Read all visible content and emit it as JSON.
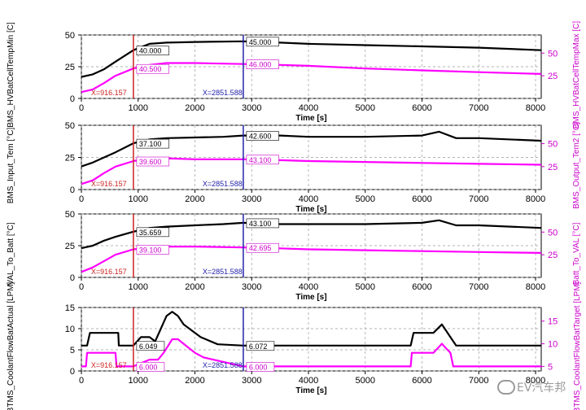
{
  "chart_data": [
    {
      "type": "line",
      "ylabel_left": "BMS_HVBatCellTempMin [C]",
      "ylabel_right": "BMS_HVBatCellTempMax [C]",
      "xlabel": "Time [s]",
      "xlim": [
        0,
        8100
      ],
      "xticks": [
        0,
        1000,
        2000,
        3000,
        4000,
        5000,
        6000,
        7000,
        8000
      ],
      "ylim_left": [
        0,
        50
      ],
      "yticks_left": [
        0,
        25,
        50
      ],
      "ylim_right": [
        0,
        70
      ],
      "yticks_right": [
        25,
        50
      ],
      "grid": true,
      "series": [
        {
          "axis": "left",
          "color": "#000000",
          "x": [
            0,
            200,
            400,
            600,
            916,
            1200,
            1500,
            2000,
            2851,
            3500,
            4000,
            5000,
            6000,
            7000,
            8100
          ],
          "y": [
            17,
            19,
            23,
            29,
            38,
            43,
            44,
            44.5,
            45,
            44,
            43,
            42,
            41,
            40,
            38
          ]
        },
        {
          "axis": "right",
          "color": "#ff00ff",
          "x": [
            0,
            200,
            400,
            600,
            916,
            1200,
            1500,
            2000,
            2851,
            3500,
            4000,
            5000,
            6000,
            7000,
            8100
          ],
          "y": [
            7,
            10,
            17,
            25,
            33,
            37,
            39,
            39,
            38,
            37,
            36,
            33,
            31,
            29,
            27
          ]
        }
      ],
      "cursors": [
        {
          "x": 916.157,
          "label": "X=916.157",
          "color": "#cc2222",
          "left_value": "40.000",
          "right_value": "40.500"
        },
        {
          "x": 2851.588,
          "label": "X=2851.588",
          "color": "#2222aa",
          "left_value": "45.000",
          "right_value": "46.000"
        }
      ]
    },
    {
      "type": "line",
      "ylabel_left": "BMS_Input_Tem [°C]",
      "ylabel_right": "BMS_Output_Tem2 [°C]",
      "xlabel": "Time [s]",
      "xlim": [
        0,
        8100
      ],
      "xticks": [
        0,
        1000,
        2000,
        3000,
        4000,
        5000,
        6000,
        7000,
        8000
      ],
      "ylim_left": [
        0,
        50
      ],
      "yticks_left": [
        0,
        25,
        50
      ],
      "ylim_right": [
        0,
        70
      ],
      "yticks_right": [
        25,
        50
      ],
      "grid": true,
      "series": [
        {
          "axis": "left",
          "color": "#000000",
          "x": [
            0,
            200,
            400,
            600,
            916,
            1200,
            1500,
            2000,
            2500,
            2851,
            3500,
            4000,
            5000,
            6000,
            6300,
            6600,
            7000,
            8100
          ],
          "y": [
            18,
            21,
            25,
            29,
            36,
            39,
            40,
            40.5,
            41,
            42,
            42,
            41,
            41,
            42,
            45,
            40,
            40,
            38
          ]
        },
        {
          "axis": "right",
          "color": "#ff00ff",
          "x": [
            0,
            200,
            400,
            600,
            916,
            1200,
            1500,
            2000,
            2851,
            3500,
            4000,
            5000,
            6000,
            7000,
            8100
          ],
          "y": [
            6,
            10,
            18,
            25,
            31,
            34,
            34,
            33,
            33,
            32,
            31,
            30,
            29,
            28,
            27
          ]
        }
      ],
      "cursors": [
        {
          "x": 916.157,
          "label": "X=916.157",
          "color": "#cc2222",
          "left_value": "37.100",
          "right_value": "39.600"
        },
        {
          "x": 2851.588,
          "label": "X=2851.588",
          "color": "#2222aa",
          "left_value": "42.600",
          "right_value": "43.100"
        }
      ]
    },
    {
      "type": "line",
      "ylabel_left": "VAL_To_Batt [°C]",
      "ylabel_right": "Batt_To_VAL [°C]",
      "xlabel": "Time [s]",
      "xlim": [
        0,
        8100
      ],
      "xticks": [
        0,
        1000,
        2000,
        3000,
        4000,
        5000,
        6000,
        7000,
        8000
      ],
      "ylim_left": [
        0,
        50
      ],
      "yticks_left": [
        0,
        25,
        50
      ],
      "ylim_right": [
        0,
        70
      ],
      "yticks_right": [
        25,
        50
      ],
      "grid": true,
      "series": [
        {
          "axis": "left",
          "color": "#000000",
          "x": [
            0,
            200,
            400,
            600,
            916,
            1200,
            1500,
            2000,
            2500,
            2851,
            3500,
            4000,
            5000,
            6000,
            6300,
            6600,
            7000,
            8100
          ],
          "y": [
            23,
            25,
            29,
            32,
            36,
            39,
            40,
            41,
            42,
            43,
            42,
            42,
            42,
            43,
            45,
            41,
            41,
            39
          ]
        },
        {
          "axis": "right",
          "color": "#ff00ff",
          "x": [
            0,
            200,
            400,
            600,
            916,
            1200,
            1500,
            2000,
            2851,
            3500,
            4000,
            5000,
            6000,
            7000,
            8100
          ],
          "y": [
            6,
            11,
            18,
            25,
            31,
            33,
            34,
            34,
            33,
            32,
            31,
            30,
            29,
            28,
            27
          ]
        }
      ],
      "cursors": [
        {
          "x": 916.157,
          "label": "X=916.157",
          "color": "#cc2222",
          "left_value": "35.659",
          "right_value": "39.100"
        },
        {
          "x": 2851.588,
          "label": "X=2851.588",
          "color": "#2222aa",
          "left_value": "43.100",
          "right_value": "42.695"
        }
      ]
    },
    {
      "type": "line",
      "ylabel_left": "BTMS_CoolantFlowBatActual [LPM]",
      "ylabel_right": "BTMS_CoolantFlowBatTarget [LPM]",
      "xlabel": "Time [s]",
      "xlim": [
        0,
        8100
      ],
      "xticks": [
        0,
        1000,
        2000,
        3000,
        4000,
        5000,
        6000,
        7000,
        8000
      ],
      "ylim_left": [
        0,
        15
      ],
      "yticks_left": [
        0,
        5,
        10,
        15
      ],
      "ylim_right": [
        4,
        18
      ],
      "yticks_right": [
        5,
        10,
        15
      ],
      "grid": true,
      "series": [
        {
          "axis": "left",
          "color": "#000000",
          "x": [
            0,
            100,
            150,
            450,
            650,
            660,
            916,
            1050,
            1200,
            1300,
            1500,
            1600,
            1700,
            1800,
            2100,
            2400,
            2851,
            3500,
            5600,
            5800,
            5850,
            6200,
            6350,
            6500,
            6600,
            8100
          ],
          "y": [
            6,
            6,
            9,
            9,
            9,
            6,
            6,
            8,
            8,
            7,
            13,
            14,
            13,
            11,
            8,
            6.3,
            6,
            6,
            6,
            6,
            9,
            9,
            11,
            8,
            6,
            6
          ]
        },
        {
          "axis": "right",
          "color": "#ff00ff",
          "x": [
            0,
            80,
            100,
            600,
            620,
            916,
            1200,
            1350,
            1450,
            1600,
            1700,
            1800,
            2000,
            2150,
            2851,
            5800,
            5820,
            6200,
            6350,
            6500,
            6550,
            8100
          ],
          "y": [
            5,
            5,
            8,
            8,
            5,
            5,
            6.5,
            6.5,
            8,
            11,
            11,
            10,
            8,
            7,
            5,
            5,
            8,
            8,
            10,
            8,
            5,
            5
          ]
        }
      ],
      "cursors": [
        {
          "x": 916.157,
          "label": "X=916.157",
          "color": "#cc2222",
          "left_value": "6.049",
          "right_value": "6.000"
        },
        {
          "x": 2851.588,
          "label": "X=2851.588",
          "color": "#2222aa",
          "left_value": "6.072",
          "right_value": "6.000"
        }
      ]
    }
  ],
  "watermark": {
    "text": "EV汽车邦",
    "icon": "wechat-logo-icon"
  }
}
